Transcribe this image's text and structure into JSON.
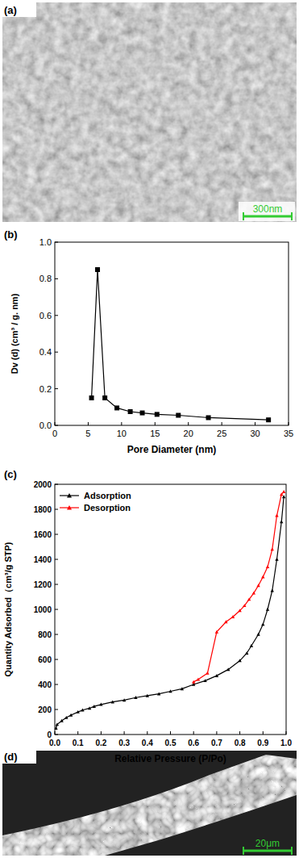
{
  "chart_data": [
    {
      "type": "line",
      "panel_label": "(b)",
      "x_label": "Pore Diameter (nm)",
      "y_label": "Dv (d) (cm³ / g. nm)",
      "xlim": [
        0,
        35
      ],
      "xticks": [
        0,
        5,
        10,
        15,
        20,
        25,
        30,
        35
      ],
      "ylim": [
        0,
        1
      ],
      "yticks": [
        {
          "value": 0,
          "label": "0.0"
        },
        0.2,
        0.4,
        0.6,
        0.8,
        {
          "value": 1,
          "label": "1.0"
        }
      ],
      "grid": false,
      "series": [
        {
          "name": "Dv",
          "color": "#000000",
          "marker": "square",
          "line_style": "solid",
          "x": [
            5.5,
            6.4,
            7.5,
            9.3,
            11.3,
            13.1,
            15.3,
            18.5,
            23,
            32
          ],
          "values": [
            0.15,
            0.85,
            0.15,
            0.095,
            0.075,
            0.068,
            0.06,
            0.055,
            0.042,
            0.03
          ]
        }
      ]
    },
    {
      "type": "line",
      "panel_label": "(c)",
      "x_label": "Relative Pressure (P/Po)",
      "y_label": "Quantity Adsorbed（cm³/g STP)",
      "xlim": [
        0,
        1
      ],
      "xticks": [
        {
          "value": 0,
          "label": "0.0"
        },
        0.1,
        0.2,
        0.3,
        0.4,
        0.5,
        0.6,
        0.7,
        0.8,
        0.9,
        {
          "value": 1,
          "label": "1.0"
        }
      ],
      "ylim": [
        0,
        2000
      ],
      "yticks": [
        0,
        200,
        400,
        600,
        800,
        1000,
        1200,
        1400,
        1600,
        1800,
        2000
      ],
      "grid": false,
      "legend": "upper left",
      "series": [
        {
          "name": "Adsorption",
          "color": "#000000",
          "marker": "triangle",
          "line_style": "solid",
          "x": [
            0.005,
            0.01,
            0.03,
            0.05,
            0.07,
            0.1,
            0.12,
            0.15,
            0.17,
            0.2,
            0.25,
            0.3,
            0.35,
            0.4,
            0.45,
            0.5,
            0.55,
            0.6,
            0.65,
            0.7,
            0.75,
            0.8,
            0.83,
            0.85,
            0.88,
            0.9,
            0.92,
            0.94,
            0.96,
            0.98,
            0.99
          ],
          "values": [
            50,
            80,
            110,
            135,
            155,
            180,
            195,
            210,
            225,
            240,
            260,
            275,
            295,
            310,
            325,
            345,
            365,
            400,
            430,
            470,
            520,
            590,
            650,
            710,
            800,
            880,
            1000,
            1150,
            1400,
            1700,
            1900
          ]
        },
        {
          "name": "Desorption",
          "color": "#ff0000",
          "marker": "triangle",
          "line_style": "solid",
          "x": [
            0.99,
            0.98,
            0.96,
            0.94,
            0.92,
            0.9,
            0.88,
            0.86,
            0.84,
            0.82,
            0.8,
            0.77,
            0.74,
            0.7,
            0.66,
            0.62,
            0.6
          ],
          "values": [
            1940,
            1920,
            1750,
            1480,
            1340,
            1260,
            1190,
            1130,
            1080,
            1030,
            990,
            940,
            900,
            820,
            490,
            440,
            420
          ]
        }
      ]
    }
  ],
  "images": [
    {
      "label": "(a)",
      "scale_bar": "300nm"
    },
    {
      "label": "(d)",
      "scale_bar": "20μm"
    }
  ]
}
